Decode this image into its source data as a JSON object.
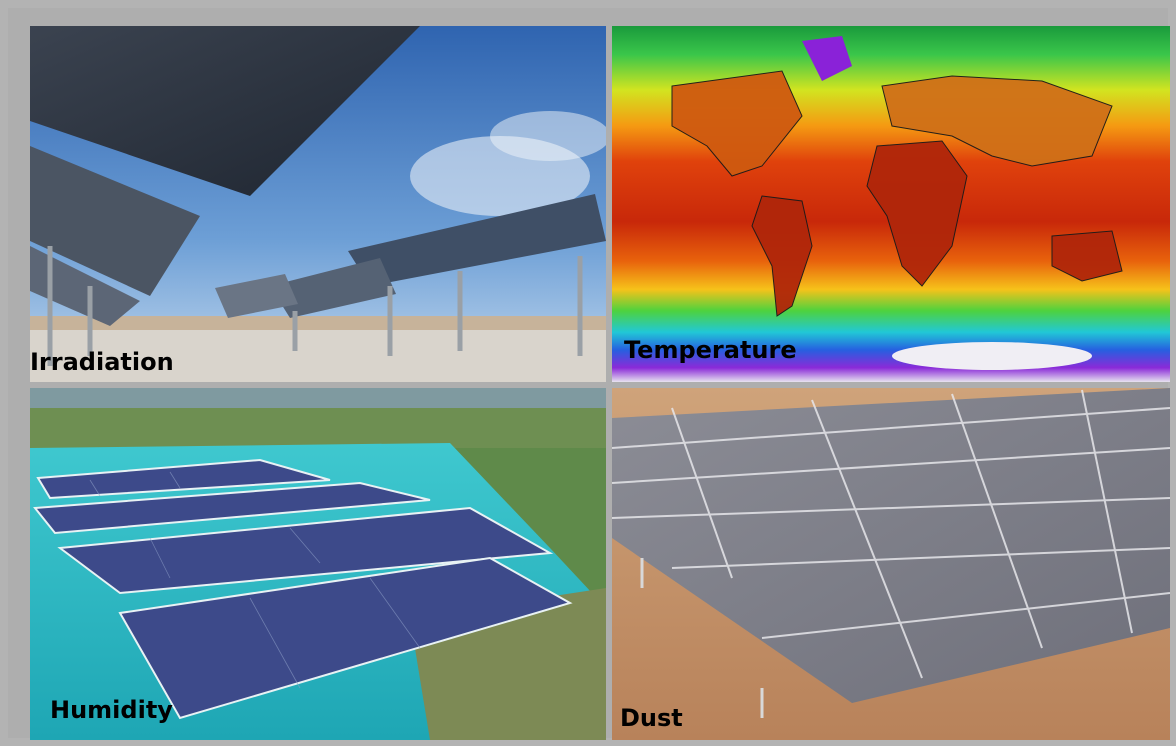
{
  "panels": {
    "irradiation": {
      "label": "Irradiation"
    },
    "temperature": {
      "label": "Temperature"
    },
    "humidity": {
      "label": "Humidity"
    },
    "dust": {
      "label": "Dust"
    }
  },
  "colors": {
    "sky": "#4a7fc4",
    "lake": "#2bb5c0",
    "desert": "#c89a6e",
    "map_hot": "#c0240a",
    "map_cold": "#6a22d8"
  },
  "icons": {
    "irradiation": "solar-tracker-photo",
    "temperature": "world-temperature-map",
    "humidity": "floating-solar-photo",
    "dust": "dusty-solar-array-photo"
  }
}
